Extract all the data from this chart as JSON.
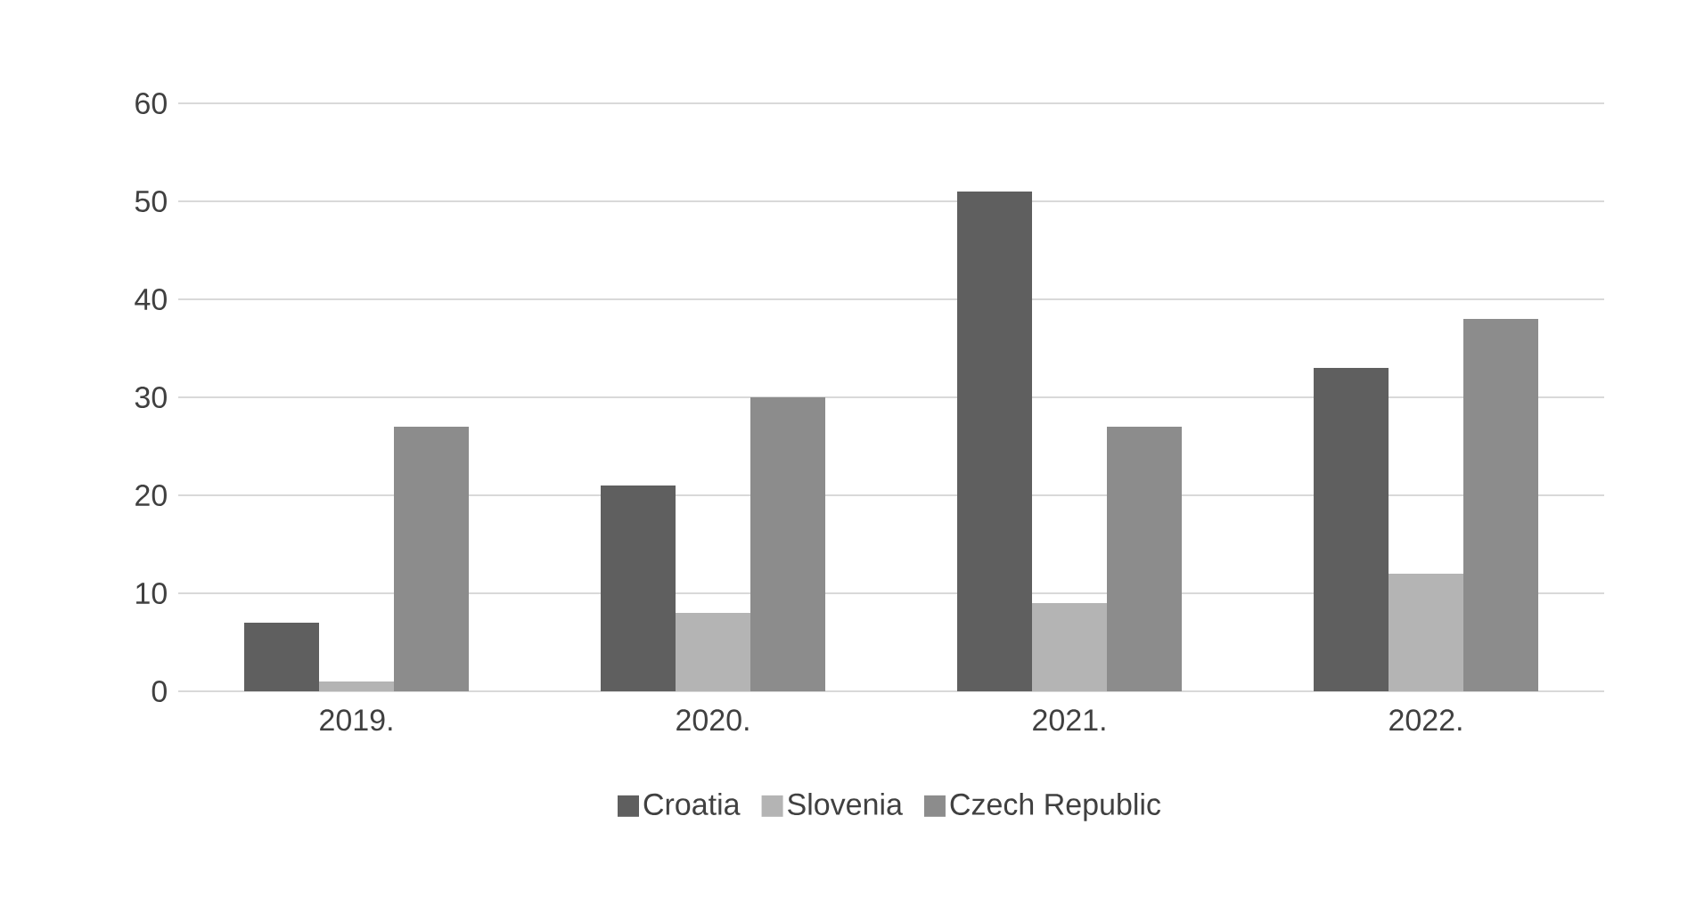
{
  "chart_data": {
    "type": "bar",
    "categories": [
      "2019.",
      "2020.",
      "2021.",
      "2022."
    ],
    "series": [
      {
        "name": "Croatia",
        "color": "#5f5f5f",
        "values": [
          7,
          21,
          51,
          33
        ]
      },
      {
        "name": "Slovenia",
        "color": "#b4b4b4",
        "values": [
          1,
          8,
          9,
          12
        ]
      },
      {
        "name": "Czech Republic",
        "color": "#8c8c8c",
        "values": [
          27,
          30,
          27,
          38
        ]
      }
    ],
    "ylim": [
      0,
      60
    ],
    "yticks": [
      0,
      10,
      20,
      30,
      40,
      50,
      60
    ],
    "grid": "y",
    "legend": "bottom"
  }
}
